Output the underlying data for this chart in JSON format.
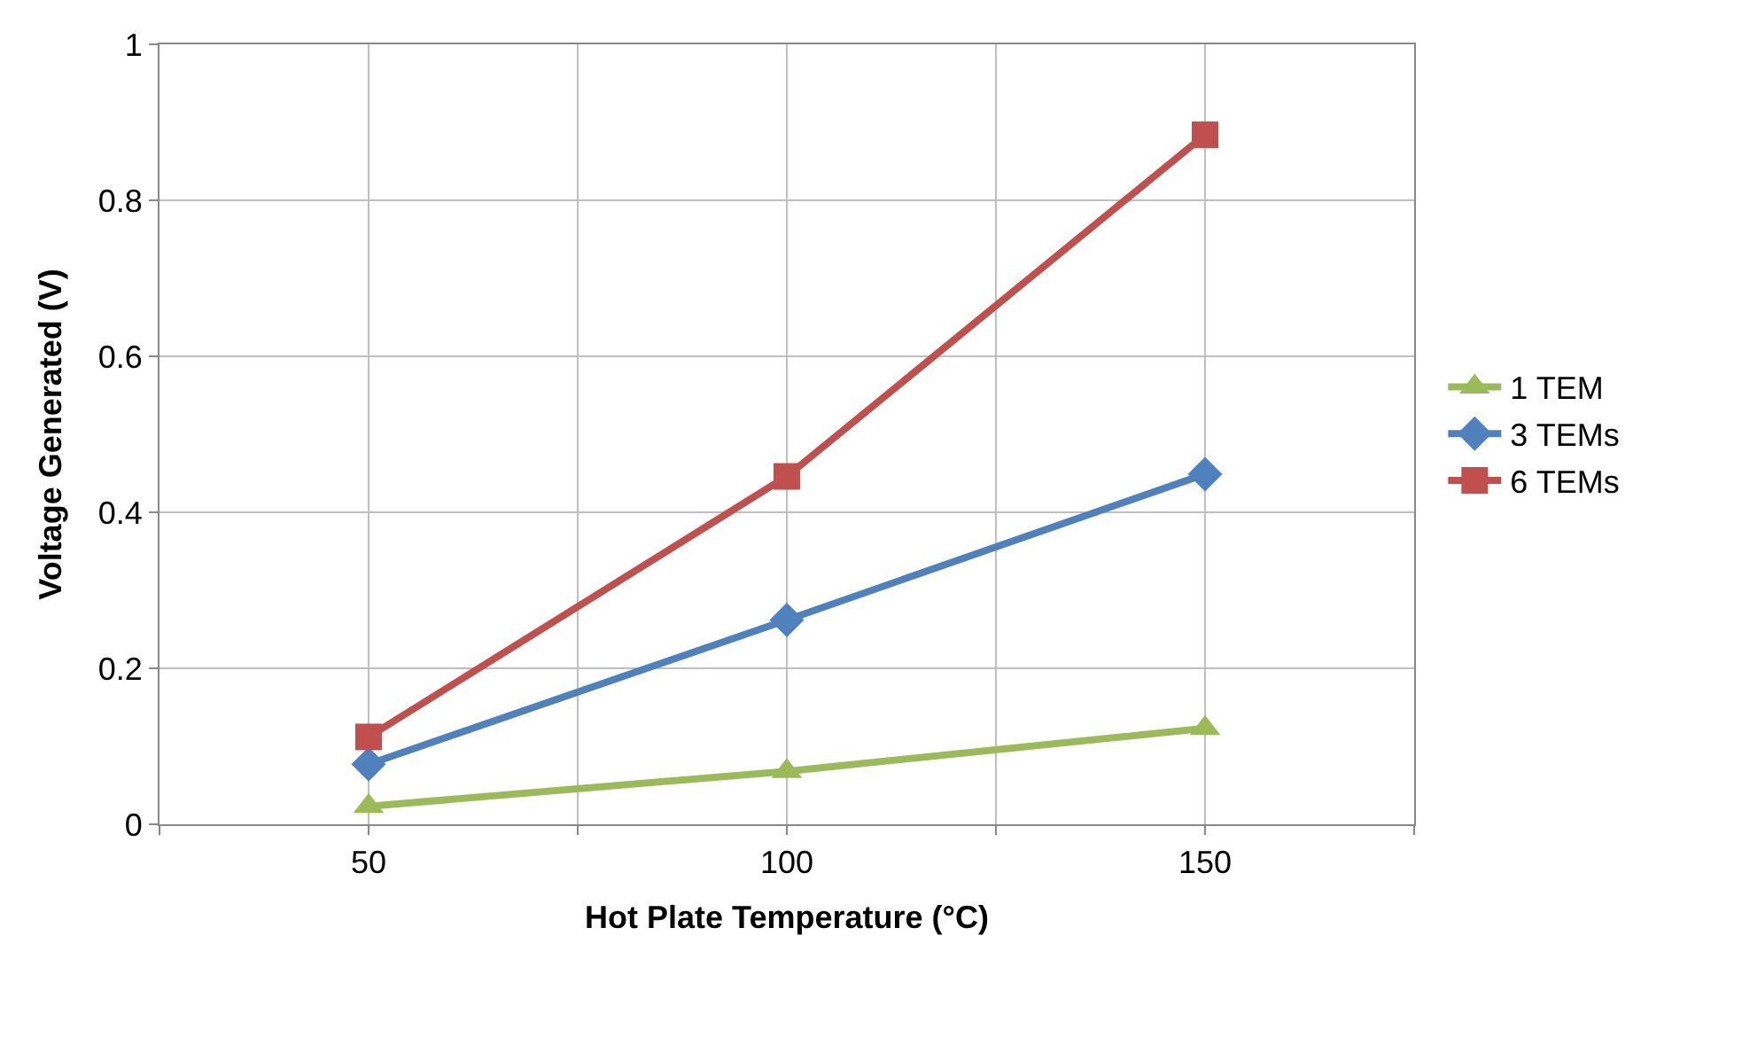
{
  "chart_data": {
    "type": "line",
    "xlabel": "Hot Plate Temperature (°C)",
    "ylabel": "Voltage Generated (V)",
    "x": [
      50,
      100,
      150
    ],
    "series": [
      {
        "name": "1 TEM",
        "color": "#9bbb59",
        "values": [
          0.023,
          0.068,
          0.123
        ],
        "marker": "triangle"
      },
      {
        "name": "3 TEMs",
        "color": "#4f81bd",
        "values": [
          0.077,
          0.262,
          0.449
        ],
        "marker": "diamond"
      },
      {
        "name": "6 TEMs",
        "color": "#c0504d",
        "values": [
          0.112,
          0.446,
          0.884
        ],
        "marker": "square"
      }
    ],
    "xlim": [
      25,
      175
    ],
    "xticks": [
      {
        "value": 25,
        "label": null
      },
      50,
      {
        "value": 75,
        "label": null
      },
      100,
      {
        "value": 125,
        "label": null
      },
      150,
      {
        "value": 175,
        "label": null
      }
    ],
    "ylim": [
      0,
      1
    ],
    "yticks": [
      0,
      0.2,
      0.4,
      0.6,
      0.8,
      1
    ],
    "grid": true,
    "legend": "right",
    "line_style": "solid"
  }
}
